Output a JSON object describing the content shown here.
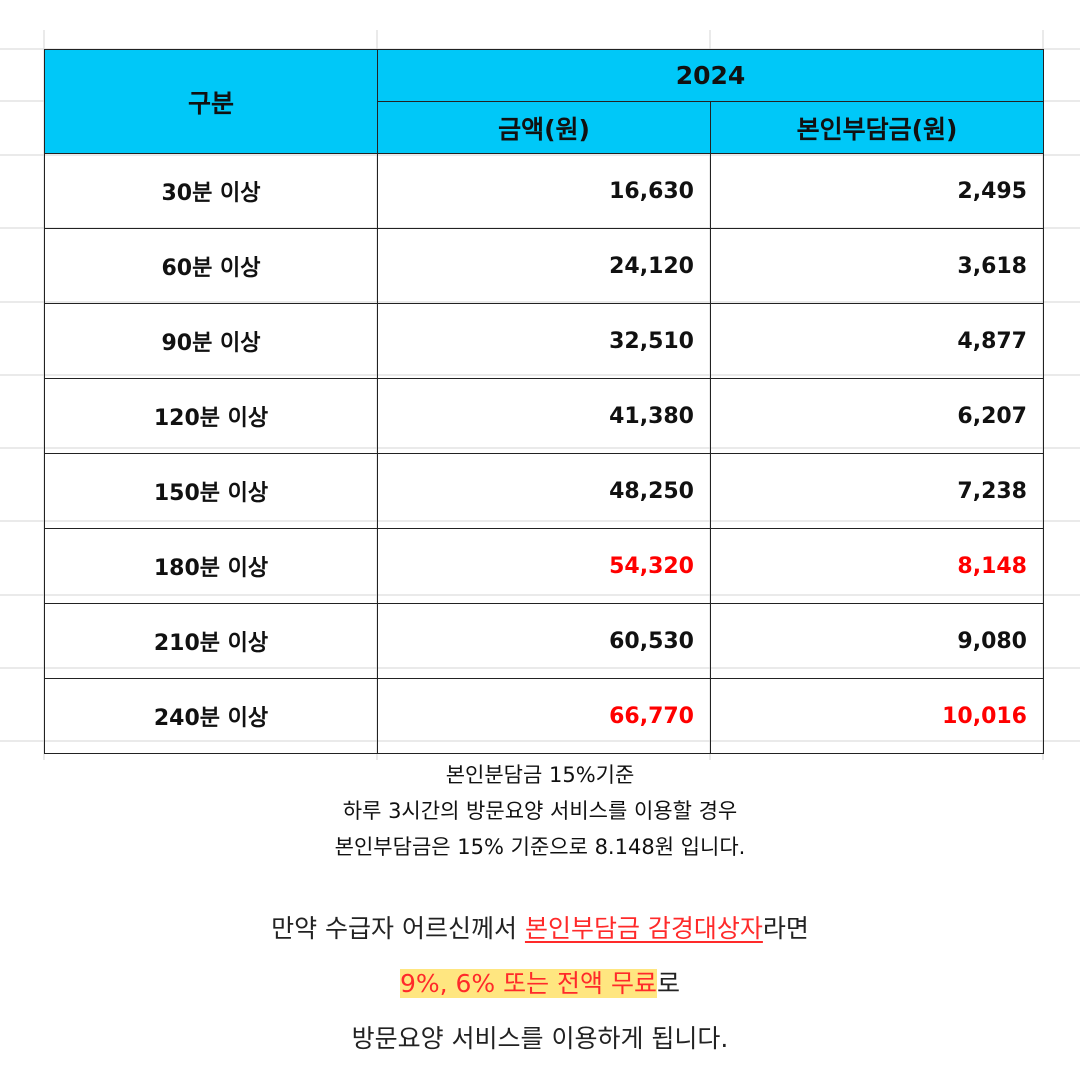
{
  "table": {
    "header_category": "구분",
    "header_year": "2024",
    "header_amount": "금액(원)",
    "header_copay": "본인부담금(원)",
    "rows": [
      {
        "category": "30분 이상",
        "amount": "16,630",
        "copay": "2,495",
        "highlight": false
      },
      {
        "category": "60분 이상",
        "amount": "24,120",
        "copay": "3,618",
        "highlight": false
      },
      {
        "category": "90분 이상",
        "amount": "32,510",
        "copay": "4,877",
        "highlight": false
      },
      {
        "category": "120분 이상",
        "amount": "41,380",
        "copay": "6,207",
        "highlight": false
      },
      {
        "category": "150분 이상",
        "amount": "48,250",
        "copay": "7,238",
        "highlight": false
      },
      {
        "category": "180분 이상",
        "amount": "54,320",
        "copay": "8,148",
        "highlight": true
      },
      {
        "category": "210분 이상",
        "amount": "60,530",
        "copay": "9,080",
        "highlight": false
      },
      {
        "category": "240분 이상",
        "amount": "66,770",
        "copay": "10,016",
        "highlight": true
      }
    ]
  },
  "note": {
    "line1": "본인분담금 15%기준",
    "line2": "하루 3시간의 방문요양 서비스를 이용할 경우",
    "line3": "본인부담금은 15% 기준으로 8.148원 입니다."
  },
  "bottom": {
    "line1_prefix": "만약 수급자 어르신께서 ",
    "line1_highlight": "본인부담금 감경대상자",
    "line1_suffix": "라면",
    "line2_highlight": "9%, 6% 또는 전액 무료",
    "line2_suffix": "로",
    "line3": "방문요양 서비스를 이용하게 됩니다."
  },
  "colors": {
    "header_bg": "#00c8f8",
    "highlight_red": "#ff0000",
    "marker_yellow": "#ffe680"
  }
}
